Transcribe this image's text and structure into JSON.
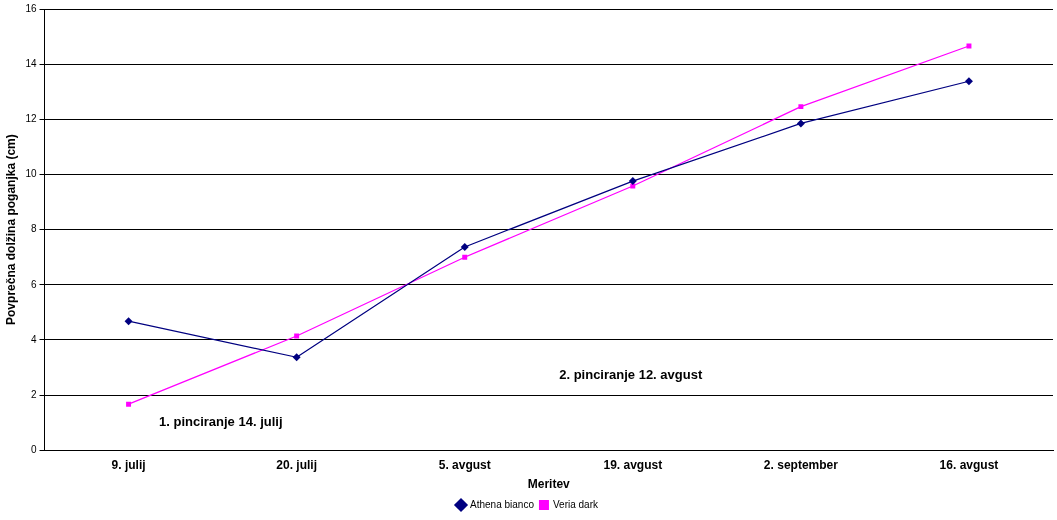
{
  "chart_data": {
    "type": "line",
    "xlabel": "Meritev",
    "ylabel": "Povprečna dolžina poganjka (cm)",
    "categories": [
      "9. julij",
      "20. julij",
      "5. avgust",
      "19. avgust",
      "2. september",
      "16. avgust"
    ],
    "series": [
      {
        "name": "Athena bianco",
        "color": "#000080",
        "marker": "diamond",
        "values": [
          4.68,
          3.37,
          7.37,
          9.76,
          11.85,
          13.38
        ]
      },
      {
        "name": "Veria dark",
        "color": "#ff00ff",
        "marker": "square",
        "values": [
          1.67,
          4.14,
          7.0,
          9.58,
          12.46,
          14.66
        ]
      }
    ],
    "ylim": [
      0,
      16
    ],
    "yticks": [
      0,
      2,
      4,
      6,
      8,
      10,
      12,
      14,
      16
    ],
    "grid": "y",
    "legend": "bottom",
    "line_style": "solid",
    "annotations": [
      "1. pinciranje 14. julij",
      "2. pinciranje 12. avgust"
    ]
  }
}
